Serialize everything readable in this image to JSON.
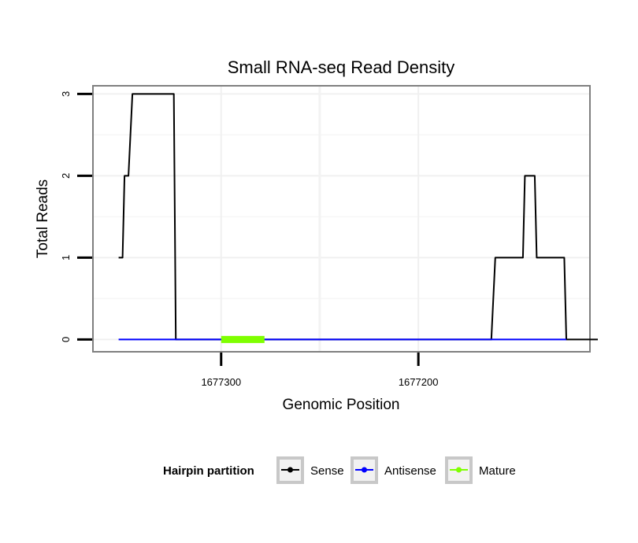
{
  "chart_data": {
    "type": "line",
    "title": "Small RNA-seq Read Density",
    "xlabel": "Genomic Position",
    "ylabel": "Total Reads",
    "x_reversed": true,
    "xlim": [
      1677365,
      1677113
    ],
    "ylim": [
      -0.15,
      3.1
    ],
    "x_ticks": [
      {
        "value": 1677300,
        "label": "1677300"
      },
      {
        "value": 1677200,
        "label": "1677200"
      }
    ],
    "y_ticks": [
      {
        "value": 0,
        "label": "0"
      },
      {
        "value": 1,
        "label": "1"
      },
      {
        "value": 2,
        "label": "2"
      },
      {
        "value": 3,
        "label": "3"
      }
    ],
    "grid": true,
    "series": [
      {
        "name": "Sense",
        "color": "#000000",
        "points": [
          [
            1677352,
            1
          ],
          [
            1677350,
            1
          ],
          [
            1677349,
            2
          ],
          [
            1677347,
            2
          ],
          [
            1677345,
            3
          ],
          [
            1677324,
            3
          ],
          [
            1677323,
            0
          ],
          [
            1677163,
            0
          ],
          [
            1677161,
            1
          ],
          [
            1677147,
            1
          ],
          [
            1677146,
            2
          ],
          [
            1677141,
            2
          ],
          [
            1677140,
            1
          ],
          [
            1677126,
            1
          ],
          [
            1677125,
            0
          ],
          [
            1677109,
            0
          ]
        ]
      },
      {
        "name": "Antisense",
        "color": "#0000ff",
        "points": [
          [
            1677352,
            0
          ],
          [
            1677324,
            0
          ],
          [
            1677163,
            0
          ],
          [
            1677125,
            0
          ]
        ]
      },
      {
        "name": "Mature",
        "color": "#7fff00",
        "points": [
          [
            1677300,
            0
          ],
          [
            1677278,
            0
          ]
        ]
      }
    ],
    "legend": {
      "title": "Hairpin partition",
      "position": "bottom",
      "entries": [
        {
          "label": "Sense",
          "color": "#000000"
        },
        {
          "label": "Antisense",
          "color": "#0000ff"
        },
        {
          "label": "Mature",
          "color": "#7fff00"
        }
      ]
    }
  }
}
